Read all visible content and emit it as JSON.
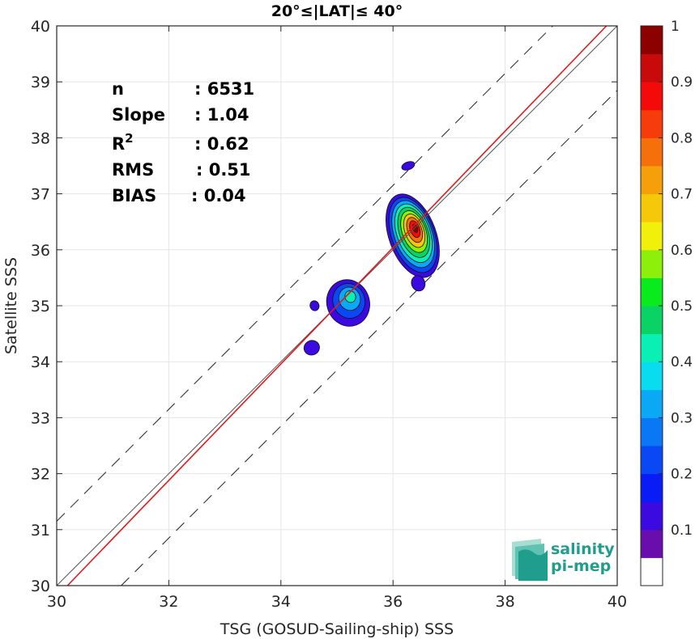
{
  "chart_data": {
    "type": "heatmap",
    "title": "20°≤|LAT|≤ 40°",
    "xlabel": "TSG (GOSUD-Sailing-ship) SSS",
    "ylabel": "Satellite SSS",
    "xlim": [
      30,
      40
    ],
    "ylim": [
      30,
      40
    ],
    "xticks": [
      "30",
      "32",
      "34",
      "36",
      "38",
      "40"
    ],
    "yticks": [
      "30",
      "31",
      "32",
      "33",
      "34",
      "35",
      "36",
      "37",
      "38",
      "39",
      "40"
    ],
    "grid": true,
    "stats": [
      {
        "key": "n",
        "value": ": 6531"
      },
      {
        "key": "Slope",
        "value": ": 1.04"
      },
      {
        "key": "R",
        "sup": "2",
        "value": ": 0.62"
      },
      {
        "key": "RMS",
        "value": ": 0.51"
      },
      {
        "key": "BIAS",
        "value": ": 0.04"
      }
    ],
    "lines": {
      "identity": {
        "slope": 1,
        "intercept": 0,
        "color": "#555555"
      },
      "fit": {
        "slope": 1.04,
        "intercept": -1.4,
        "color": "#e31a1c"
      },
      "bounds_offset": 1.15
    },
    "colorbar": {
      "min": 0,
      "max": 1,
      "ticks": [
        "0.1",
        "0.2",
        "0.3",
        "0.4",
        "0.5",
        "0.6",
        "0.7",
        "0.8",
        "0.9",
        "1"
      ],
      "colors": [
        "#ffffff",
        "#6a0dad",
        "#3a0ae0",
        "#0a1cf5",
        "#0a48f5",
        "#0a78f5",
        "#0aa8f5",
        "#0adcf0",
        "#0af0b4",
        "#0ad264",
        "#0aeb1e",
        "#8cf00a",
        "#f0f00a",
        "#f5c80a",
        "#f5a00a",
        "#f5700a",
        "#f53c0a",
        "#f50a0a",
        "#c80a0a",
        "#8c0000"
      ]
    },
    "blobs": [
      {
        "cx": 36.35,
        "cy": 36.25,
        "rx": 0.42,
        "ry": 0.78,
        "levels": 10
      },
      {
        "cx": 35.2,
        "cy": 35.05,
        "rx": 0.38,
        "ry": 0.42,
        "levels": 4
      },
      {
        "cx": 36.45,
        "cy": 35.4,
        "rx": 0.12,
        "ry": 0.14,
        "levels": 1
      },
      {
        "cx": 34.55,
        "cy": 34.25,
        "rx": 0.14,
        "ry": 0.13,
        "levels": 1
      },
      {
        "cx": 34.6,
        "cy": 35.0,
        "rx": 0.08,
        "ry": 0.09,
        "levels": 1
      },
      {
        "cx": 36.27,
        "cy": 37.5,
        "rx": 0.12,
        "ry": 0.07,
        "levels": 1
      }
    ]
  },
  "logo": {
    "line1": "salinity",
    "line2": "pi-mep"
  }
}
